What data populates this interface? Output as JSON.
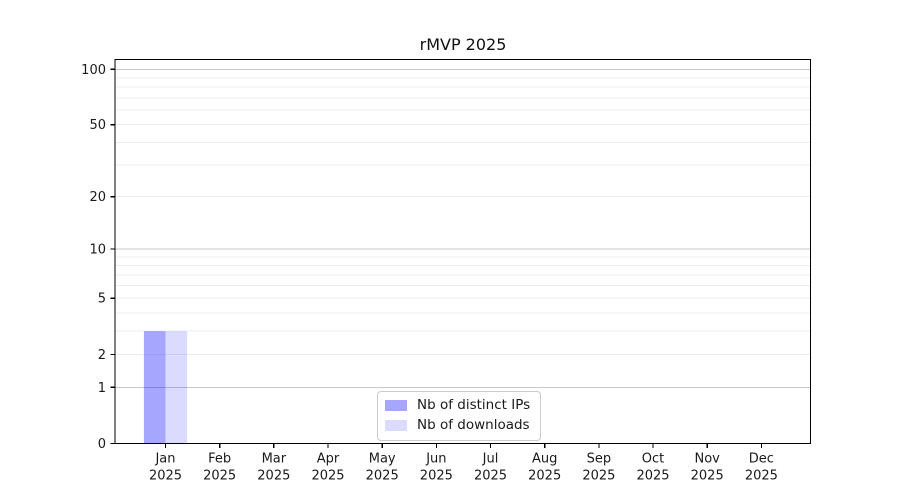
{
  "chart_data": {
    "type": "bar",
    "title": "rMVP 2025",
    "months": [
      "Jan",
      "Feb",
      "Mar",
      "Apr",
      "May",
      "Jun",
      "Jul",
      "Aug",
      "Sep",
      "Oct",
      "Nov",
      "Dec"
    ],
    "year": "2025",
    "categories": [
      "Jan 2025",
      "Feb 2025",
      "Mar 2025",
      "Apr 2025",
      "May 2025",
      "Jun 2025",
      "Jul 2025",
      "Aug 2025",
      "Sep 2025",
      "Oct 2025",
      "Nov 2025",
      "Dec 2025"
    ],
    "series": [
      {
        "name": "Nb of distinct IPs",
        "color": "rgba(0,0,255,0.35)",
        "color_hex": "#a6a6ff",
        "values": [
          3,
          0,
          0,
          0,
          0,
          0,
          0,
          0,
          0,
          0,
          0,
          0
        ]
      },
      {
        "name": "Nb of downloads",
        "color": "rgba(0,0,255,0.14)",
        "color_hex": "#dbdbff",
        "values": [
          3,
          0,
          0,
          0,
          0,
          0,
          0,
          0,
          0,
          0,
          0,
          0
        ]
      }
    ],
    "yscale": "log1p",
    "ylim": [
      0,
      113
    ],
    "ytick_labels": [
      0,
      1,
      2,
      5,
      10,
      20,
      50,
      100
    ],
    "major_grid_values": [
      1,
      10,
      100
    ],
    "minor_grid_values": [
      2,
      3,
      4,
      5,
      6,
      7,
      8,
      9,
      20,
      30,
      40,
      50,
      60,
      70,
      80,
      90
    ],
    "grid": true,
    "legend_position": "lower center",
    "colors": {
      "major_grid": "#c8c8c8",
      "minor_grid": "#ededed",
      "spine": "#000000",
      "tick": "#000000"
    }
  }
}
